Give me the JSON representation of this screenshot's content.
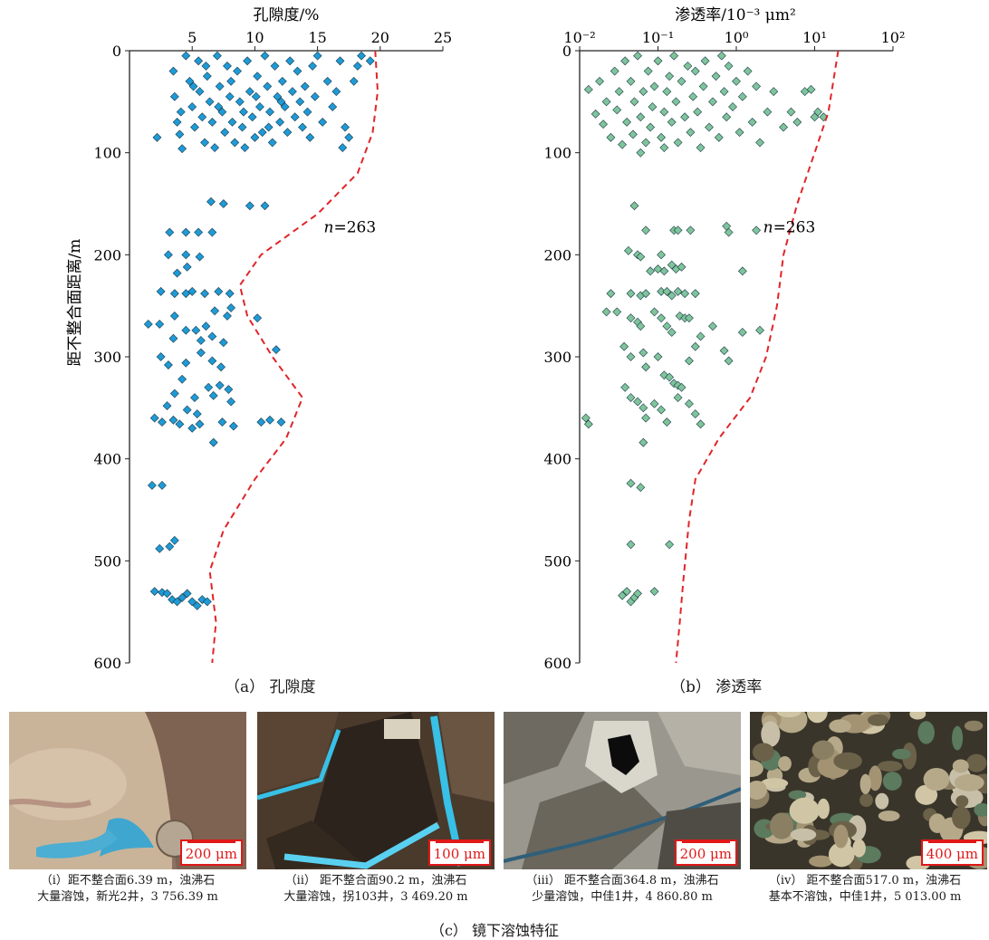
{
  "figure": {
    "panel_a_caption": "（a） 孔隙度",
    "panel_b_caption": "（b） 渗透率",
    "panel_c_caption": "（c） 镜下溶蚀特征"
  },
  "colors": {
    "porosity_marker": "#1e9ad6",
    "permeability_marker": "#7fc49a",
    "envelope": "#e0252a",
    "scalebar": "#e01818"
  },
  "chart_data": [
    {
      "type": "scatter",
      "title": "孔隙度/%",
      "ylabel": "距不整合面距离/m",
      "x_axis_position": "top",
      "xlim": [
        0,
        25
      ],
      "x_ticks": [
        "5",
        "10",
        "15",
        "20",
        "25"
      ],
      "ylim": [
        0,
        600
      ],
      "y_inverted": true,
      "y_ticks": [
        "0",
        "100",
        "200",
        "300",
        "400",
        "500",
        "600"
      ],
      "annotation": "n=263",
      "marker": "diamond",
      "points": [
        [
          2.2,
          85
        ],
        [
          3.5,
          20
        ],
        [
          3.6,
          45
        ],
        [
          3.8,
          70
        ],
        [
          4.0,
          82
        ],
        [
          4.2,
          96
        ],
        [
          4.5,
          5
        ],
        [
          4.8,
          30
        ],
        [
          5.0,
          55
        ],
        [
          5.2,
          75
        ],
        [
          5.5,
          10
        ],
        [
          5.6,
          40
        ],
        [
          5.8,
          65
        ],
        [
          6.0,
          90
        ],
        [
          6.2,
          25
        ],
        [
          6.4,
          50
        ],
        [
          6.6,
          70
        ],
        [
          6.8,
          95
        ],
        [
          7.0,
          5
        ],
        [
          7.2,
          35
        ],
        [
          7.4,
          60
        ],
        [
          7.6,
          80
        ],
        [
          7.8,
          15
        ],
        [
          8.0,
          45
        ],
        [
          8.2,
          70
        ],
        [
          8.4,
          90
        ],
        [
          8.6,
          20
        ],
        [
          8.8,
          50
        ],
        [
          9.0,
          75
        ],
        [
          9.2,
          95
        ],
        [
          9.4,
          10
        ],
        [
          9.6,
          40
        ],
        [
          9.8,
          65
        ],
        [
          10.0,
          85
        ],
        [
          10.2,
          25
        ],
        [
          10.4,
          55
        ],
        [
          10.6,
          80
        ],
        [
          10.8,
          5
        ],
        [
          11.0,
          35
        ],
        [
          11.2,
          60
        ],
        [
          11.4,
          90
        ],
        [
          11.6,
          15
        ],
        [
          11.8,
          45
        ],
        [
          12.0,
          70
        ],
        [
          12.2,
          30
        ],
        [
          12.4,
          55
        ],
        [
          12.6,
          80
        ],
        [
          12.8,
          10
        ],
        [
          13.0,
          40
        ],
        [
          13.2,
          65
        ],
        [
          13.4,
          20
        ],
        [
          13.6,
          50
        ],
        [
          13.8,
          75
        ],
        [
          14.0,
          35
        ],
        [
          14.2,
          60
        ],
        [
          14.4,
          85
        ],
        [
          14.6,
          15
        ],
        [
          14.8,
          45
        ],
        [
          15.0,
          5
        ],
        [
          15.4,
          70
        ],
        [
          15.8,
          30
        ],
        [
          16.2,
          55
        ],
        [
          16.5,
          40
        ],
        [
          16.8,
          10
        ],
        [
          17.0,
          95
        ],
        [
          17.2,
          75
        ],
        [
          17.5,
          85
        ],
        [
          17.9,
          30
        ],
        [
          18.2,
          15
        ],
        [
          18.5,
          5
        ],
        [
          19.2,
          10
        ],
        [
          4.1,
          60
        ],
        [
          5.1,
          35
        ],
        [
          6.1,
          15
        ],
        [
          7.1,
          55
        ],
        [
          8.1,
          30
        ],
        [
          9.1,
          60
        ],
        [
          10.1,
          45
        ],
        [
          11.1,
          75
        ],
        [
          12.1,
          50
        ],
        [
          6.5,
          148
        ],
        [
          7.5,
          150
        ],
        [
          9.6,
          152
        ],
        [
          10.8,
          152
        ],
        [
          3.2,
          178
        ],
        [
          4.5,
          178
        ],
        [
          5.5,
          178
        ],
        [
          6.6,
          178
        ],
        [
          3.1,
          200
        ],
        [
          4.5,
          200
        ],
        [
          5.6,
          202
        ],
        [
          3.8,
          218
        ],
        [
          4.6,
          212
        ],
        [
          2.5,
          236
        ],
        [
          3.6,
          238
        ],
        [
          4.5,
          238
        ],
        [
          5.0,
          236
        ],
        [
          6.0,
          238
        ],
        [
          7.1,
          236
        ],
        [
          8.0,
          238
        ],
        [
          1.5,
          268
        ],
        [
          2.4,
          268
        ],
        [
          3.6,
          260
        ],
        [
          4.5,
          274
        ],
        [
          5.3,
          274
        ],
        [
          6.1,
          270
        ],
        [
          6.8,
          255
        ],
        [
          7.8,
          260
        ],
        [
          8.1,
          252
        ],
        [
          10.2,
          262
        ],
        [
          3.5,
          282
        ],
        [
          5.7,
          284
        ],
        [
          6.6,
          280
        ],
        [
          7.5,
          286
        ],
        [
          11.7,
          293
        ],
        [
          2.5,
          300
        ],
        [
          3.1,
          308
        ],
        [
          4.5,
          306
        ],
        [
          5.7,
          296
        ],
        [
          6.6,
          304
        ],
        [
          7.3,
          310
        ],
        [
          4.2,
          322
        ],
        [
          3.6,
          336
        ],
        [
          5.2,
          340
        ],
        [
          6.3,
          330
        ],
        [
          6.7,
          338
        ],
        [
          7.2,
          328
        ],
        [
          7.9,
          332
        ],
        [
          8.1,
          344
        ],
        [
          3.0,
          348
        ],
        [
          4.6,
          352
        ],
        [
          5.4,
          356
        ],
        [
          2.0,
          360
        ],
        [
          2.6,
          364
        ],
        [
          3.5,
          362
        ],
        [
          4.0,
          366
        ],
        [
          5.0,
          370
        ],
        [
          5.6,
          366
        ],
        [
          7.4,
          364
        ],
        [
          8.3,
          368
        ],
        [
          10.5,
          364
        ],
        [
          11.2,
          362
        ],
        [
          12.1,
          364
        ],
        [
          6.7,
          384
        ],
        [
          1.8,
          426
        ],
        [
          2.6,
          426
        ],
        [
          3.2,
          486
        ],
        [
          2.4,
          488
        ],
        [
          3.6,
          480
        ],
        [
          2.0,
          530
        ],
        [
          2.6,
          531
        ],
        [
          3.0,
          532
        ],
        [
          3.4,
          538
        ],
        [
          3.8,
          540
        ],
        [
          4.2,
          536
        ],
        [
          4.6,
          532
        ],
        [
          5.0,
          540
        ],
        [
          5.4,
          544
        ],
        [
          5.8,
          538
        ],
        [
          6.2,
          540
        ]
      ],
      "envelope": [
        [
          19.6,
          0
        ],
        [
          19.8,
          40
        ],
        [
          19.4,
          80
        ],
        [
          18.2,
          120
        ],
        [
          15.0,
          160
        ],
        [
          10.5,
          200
        ],
        [
          8.8,
          230
        ],
        [
          9.4,
          260
        ],
        [
          11.4,
          300
        ],
        [
          13.8,
          340
        ],
        [
          12.5,
          380
        ],
        [
          10.0,
          420
        ],
        [
          7.5,
          470
        ],
        [
          6.4,
          510
        ],
        [
          6.9,
          560
        ],
        [
          6.6,
          600
        ]
      ]
    },
    {
      "type": "scatter",
      "title": "渗透率/10⁻³ μm²",
      "x_axis_position": "top",
      "x_scale": "log",
      "xlim": [
        0.01,
        100
      ],
      "x_ticks": [
        "10⁻²",
        "10⁻¹",
        "10⁰",
        "10¹",
        "10²"
      ],
      "ylim": [
        0,
        600
      ],
      "y_inverted": true,
      "y_ticks": [
        "0",
        "100",
        "200",
        "300",
        "400",
        "500",
        "600"
      ],
      "annotation": "n=263",
      "marker": "diamond",
      "points": [
        [
          0.013,
          38
        ],
        [
          0.016,
          62
        ],
        [
          0.018,
          30
        ],
        [
          0.02,
          72
        ],
        [
          0.022,
          50
        ],
        [
          0.025,
          85
        ],
        [
          0.028,
          20
        ],
        [
          0.03,
          58
        ],
        [
          0.032,
          40
        ],
        [
          0.035,
          92
        ],
        [
          0.038,
          10
        ],
        [
          0.04,
          70
        ],
        [
          0.045,
          30
        ],
        [
          0.048,
          82
        ],
        [
          0.05,
          50
        ],
        [
          0.055,
          5
        ],
        [
          0.06,
          65
        ],
        [
          0.065,
          40
        ],
        [
          0.07,
          90
        ],
        [
          0.075,
          20
        ],
        [
          0.08,
          75
        ],
        [
          0.085,
          55
        ],
        [
          0.09,
          35
        ],
        [
          0.1,
          10
        ],
        [
          0.11,
          85
        ],
        [
          0.12,
          60
        ],
        [
          0.13,
          40
        ],
        [
          0.14,
          25
        ],
        [
          0.15,
          70
        ],
        [
          0.16,
          5
        ],
        [
          0.17,
          50
        ],
        [
          0.18,
          90
        ],
        [
          0.2,
          30
        ],
        [
          0.22,
          65
        ],
        [
          0.24,
          15
        ],
        [
          0.26,
          80
        ],
        [
          0.28,
          45
        ],
        [
          0.3,
          20
        ],
        [
          0.32,
          60
        ],
        [
          0.35,
          95
        ],
        [
          0.38,
          35
        ],
        [
          0.4,
          10
        ],
        [
          0.45,
          75
        ],
        [
          0.5,
          50
        ],
        [
          0.55,
          25
        ],
        [
          0.6,
          85
        ],
        [
          0.65,
          5
        ],
        [
          0.7,
          40
        ],
        [
          0.75,
          65
        ],
        [
          0.8,
          15
        ],
        [
          0.9,
          55
        ],
        [
          1.0,
          30
        ],
        [
          1.1,
          80
        ],
        [
          1.2,
          45
        ],
        [
          1.4,
          20
        ],
        [
          1.6,
          70
        ],
        [
          1.8,
          35
        ],
        [
          2.0,
          90
        ],
        [
          2.5,
          60
        ],
        [
          3.0,
          40
        ],
        [
          4.0,
          75
        ],
        [
          5.0,
          60
        ],
        [
          6.0,
          70
        ],
        [
          7.5,
          40
        ],
        [
          9.0,
          38
        ],
        [
          10.0,
          65
        ],
        [
          11.0,
          60
        ],
        [
          13.0,
          65
        ],
        [
          0.06,
          100
        ],
        [
          0.12,
          95
        ],
        [
          0.05,
          152
        ],
        [
          0.07,
          176
        ],
        [
          0.16,
          176
        ],
        [
          0.18,
          176
        ],
        [
          0.26,
          176
        ],
        [
          0.75,
          172
        ],
        [
          0.8,
          178
        ],
        [
          1.8,
          176
        ],
        [
          0.042,
          196
        ],
        [
          0.055,
          200
        ],
        [
          0.06,
          202
        ],
        [
          0.11,
          200
        ],
        [
          0.15,
          210
        ],
        [
          0.17,
          214
        ],
        [
          0.1,
          214
        ],
        [
          0.08,
          216
        ],
        [
          0.12,
          216
        ],
        [
          0.2,
          212
        ],
        [
          1.2,
          216
        ],
        [
          0.025,
          238
        ],
        [
          0.045,
          238
        ],
        [
          0.06,
          240
        ],
        [
          0.07,
          238
        ],
        [
          0.11,
          236
        ],
        [
          0.13,
          236
        ],
        [
          0.15,
          240
        ],
        [
          0.18,
          236
        ],
        [
          0.22,
          238
        ],
        [
          0.3,
          238
        ],
        [
          0.022,
          256
        ],
        [
          0.03,
          256
        ],
        [
          0.045,
          262
        ],
        [
          0.055,
          266
        ],
        [
          0.06,
          270
        ],
        [
          0.09,
          256
        ],
        [
          0.11,
          262
        ],
        [
          0.13,
          270
        ],
        [
          0.15,
          276
        ],
        [
          0.19,
          260
        ],
        [
          0.22,
          262
        ],
        [
          0.25,
          262
        ],
        [
          0.3,
          290
        ],
        [
          0.35,
          280
        ],
        [
          0.5,
          270
        ],
        [
          0.7,
          294
        ],
        [
          1.2,
          276
        ],
        [
          2.0,
          274
        ],
        [
          0.037,
          290
        ],
        [
          0.045,
          300
        ],
        [
          0.065,
          296
        ],
        [
          0.07,
          310
        ],
        [
          0.1,
          300
        ],
        [
          0.12,
          318
        ],
        [
          0.14,
          320
        ],
        [
          0.16,
          326
        ],
        [
          0.18,
          328
        ],
        [
          0.2,
          330
        ],
        [
          0.25,
          304
        ],
        [
          0.8,
          304
        ],
        [
          0.038,
          330
        ],
        [
          0.045,
          340
        ],
        [
          0.055,
          344
        ],
        [
          0.065,
          350
        ],
        [
          0.07,
          360
        ],
        [
          0.09,
          346
        ],
        [
          0.11,
          352
        ],
        [
          0.13,
          364
        ],
        [
          0.18,
          340
        ],
        [
          0.25,
          346
        ],
        [
          0.3,
          356
        ],
        [
          0.35,
          366
        ],
        [
          0.012,
          360
        ],
        [
          0.013,
          366
        ],
        [
          0.065,
          384
        ],
        [
          0.045,
          424
        ],
        [
          0.06,
          428
        ],
        [
          0.045,
          484
        ],
        [
          0.14,
          484
        ],
        [
          0.035,
          534
        ],
        [
          0.04,
          530
        ],
        [
          0.045,
          540
        ],
        [
          0.05,
          536
        ],
        [
          0.055,
          532
        ],
        [
          0.09,
          530
        ]
      ],
      "envelope": [
        [
          20,
          0
        ],
        [
          15,
          60
        ],
        [
          10,
          100
        ],
        [
          6,
          150
        ],
        [
          4,
          200
        ],
        [
          3.3,
          250
        ],
        [
          2.4,
          300
        ],
        [
          1.5,
          340
        ],
        [
          0.6,
          380
        ],
        [
          0.3,
          420
        ],
        [
          0.25,
          460
        ],
        [
          0.21,
          520
        ],
        [
          0.19,
          560
        ],
        [
          0.17,
          600
        ]
      ]
    }
  ],
  "photos": [
    {
      "scale_label": "200 μm",
      "caption_line1": "（ⅰ）距不整合面6.39 m，浊沸石",
      "caption_line2": "大量溶蚀，新光2井，3 756.39 m"
    },
    {
      "scale_label": "100 μm",
      "caption_line1": "（ⅱ） 距不整合面90.2 m，浊沸石",
      "caption_line2": "大量溶蚀，拐103井，3 469.20 m"
    },
    {
      "scale_label": "200 μm",
      "caption_line1": "（ⅲ） 距不整合面364.8 m，浊沸石",
      "caption_line2": "少量溶蚀，中佳1井，4 860.80 m"
    },
    {
      "scale_label": "400 μm",
      "caption_line1": "（ⅳ） 距不整合面517.0 m，浊沸石",
      "caption_line2": "基本不溶蚀，中佳1井，5 013.00 m"
    }
  ]
}
